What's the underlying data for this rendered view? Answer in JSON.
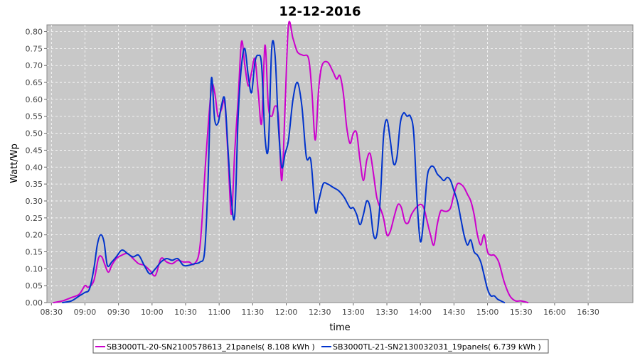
{
  "chart_data": {
    "type": "line",
    "title": "12-12-2016",
    "xlabel": "time",
    "ylabel": "Watt/Wp",
    "xlim": [
      "08:26",
      "17:10"
    ],
    "ylim": [
      0,
      0.82
    ],
    "x_ticks": [
      "08:30",
      "09:00",
      "09:30",
      "10:00",
      "10:30",
      "11:00",
      "11:30",
      "12:00",
      "12:30",
      "13:00",
      "13:30",
      "14:00",
      "14:30",
      "15:00",
      "15:30",
      "16:00",
      "16:30"
    ],
    "y_ticks": [
      0.0,
      0.05,
      0.1,
      0.15,
      0.2,
      0.25,
      0.3,
      0.35,
      0.4,
      0.45,
      0.5,
      0.55,
      0.6,
      0.65,
      0.7,
      0.75,
      0.8
    ],
    "grid": true,
    "legend_position": "bottom",
    "colors": {
      "plot_background": "#c8c8c8",
      "grid": "#ffffff",
      "series1": "#cc00cc",
      "series2": "#0033cc"
    },
    "series": [
      {
        "name": "SB3000TL-20-SN2100578613_21panels",
        "legend_label": "SB3000TL-20-SN2100578613_21panels( 8.108 kWh )",
        "color": "#cc00cc",
        "points": [
          [
            "08:32",
            0.0
          ],
          [
            "08:40",
            0.005
          ],
          [
            "08:48",
            0.015
          ],
          [
            "08:55",
            0.025
          ],
          [
            "09:00",
            0.05
          ],
          [
            "09:03",
            0.045
          ],
          [
            "09:08",
            0.065
          ],
          [
            "09:12",
            0.13
          ],
          [
            "09:15",
            0.135
          ],
          [
            "09:18",
            0.11
          ],
          [
            "09:21",
            0.09
          ],
          [
            "09:24",
            0.11
          ],
          [
            "09:28",
            0.13
          ],
          [
            "09:33",
            0.14
          ],
          [
            "09:38",
            0.145
          ],
          [
            "09:43",
            0.13
          ],
          [
            "09:48",
            0.115
          ],
          [
            "09:53",
            0.11
          ],
          [
            "09:58",
            0.095
          ],
          [
            "10:03",
            0.08
          ],
          [
            "10:08",
            0.13
          ],
          [
            "10:13",
            0.12
          ],
          [
            "10:18",
            0.115
          ],
          [
            "10:23",
            0.125
          ],
          [
            "10:28",
            0.12
          ],
          [
            "10:33",
            0.12
          ],
          [
            "10:38",
            0.115
          ],
          [
            "10:43",
            0.17
          ],
          [
            "10:48",
            0.42
          ],
          [
            "10:53",
            0.63
          ],
          [
            "10:56",
            0.62
          ],
          [
            "10:59",
            0.55
          ],
          [
            "11:02",
            0.57
          ],
          [
            "11:05",
            0.59
          ],
          [
            "11:08",
            0.43
          ],
          [
            "11:11",
            0.26
          ],
          [
            "11:14",
            0.45
          ],
          [
            "11:17",
            0.6
          ],
          [
            "11:20",
            0.77
          ],
          [
            "11:23",
            0.7
          ],
          [
            "11:26",
            0.64
          ],
          [
            "11:29",
            0.68
          ],
          [
            "11:32",
            0.72
          ],
          [
            "11:35",
            0.62
          ],
          [
            "11:38",
            0.53
          ],
          [
            "11:41",
            0.76
          ],
          [
            "11:44",
            0.58
          ],
          [
            "11:47",
            0.55
          ],
          [
            "11:50",
            0.58
          ],
          [
            "11:53",
            0.55
          ],
          [
            "11:56",
            0.36
          ],
          [
            "11:59",
            0.58
          ],
          [
            "12:02",
            0.82
          ],
          [
            "12:06",
            0.78
          ],
          [
            "12:10",
            0.74
          ],
          [
            "12:15",
            0.73
          ],
          [
            "12:20",
            0.72
          ],
          [
            "12:23",
            0.62
          ],
          [
            "12:26",
            0.48
          ],
          [
            "12:29",
            0.63
          ],
          [
            "12:32",
            0.7
          ],
          [
            "12:37",
            0.71
          ],
          [
            "12:42",
            0.68
          ],
          [
            "12:45",
            0.66
          ],
          [
            "12:48",
            0.67
          ],
          [
            "12:51",
            0.62
          ],
          [
            "12:54",
            0.52
          ],
          [
            "12:57",
            0.47
          ],
          [
            "13:00",
            0.5
          ],
          [
            "13:03",
            0.5
          ],
          [
            "13:06",
            0.42
          ],
          [
            "13:09",
            0.36
          ],
          [
            "13:12",
            0.42
          ],
          [
            "13:15",
            0.44
          ],
          [
            "13:18",
            0.38
          ],
          [
            "13:21",
            0.31
          ],
          [
            "13:24",
            0.28
          ],
          [
            "13:27",
            0.25
          ],
          [
            "13:30",
            0.2
          ],
          [
            "13:33",
            0.21
          ],
          [
            "13:37",
            0.26
          ],
          [
            "13:40",
            0.29
          ],
          [
            "13:43",
            0.28
          ],
          [
            "13:46",
            0.24
          ],
          [
            "13:49",
            0.235
          ],
          [
            "13:52",
            0.26
          ],
          [
            "13:56",
            0.28
          ],
          [
            "14:00",
            0.29
          ],
          [
            "14:03",
            0.28
          ],
          [
            "14:06",
            0.24
          ],
          [
            "14:09",
            0.2
          ],
          [
            "14:12",
            0.17
          ],
          [
            "14:15",
            0.23
          ],
          [
            "14:18",
            0.27
          ],
          [
            "14:21",
            0.27
          ],
          [
            "14:24",
            0.27
          ],
          [
            "14:27",
            0.28
          ],
          [
            "14:30",
            0.32
          ],
          [
            "14:33",
            0.35
          ],
          [
            "14:36",
            0.35
          ],
          [
            "14:39",
            0.34
          ],
          [
            "14:42",
            0.32
          ],
          [
            "14:45",
            0.3
          ],
          [
            "14:48",
            0.26
          ],
          [
            "14:51",
            0.2
          ],
          [
            "14:54",
            0.17
          ],
          [
            "14:57",
            0.2
          ],
          [
            "15:00",
            0.15
          ],
          [
            "15:03",
            0.14
          ],
          [
            "15:06",
            0.14
          ],
          [
            "15:10",
            0.12
          ],
          [
            "15:15",
            0.06
          ],
          [
            "15:20",
            0.02
          ],
          [
            "15:25",
            0.005
          ],
          [
            "15:30",
            0.005
          ],
          [
            "15:36",
            0.0
          ]
        ]
      },
      {
        "name": "SB3000TL-21-SN2130032031_19panels",
        "legend_label": "SB3000TL-21-SN2130032031_19panels( 6.739 kWh )",
        "color": "#0033cc",
        "points": [
          [
            "08:40",
            0.0
          ],
          [
            "08:48",
            0.005
          ],
          [
            "08:55",
            0.02
          ],
          [
            "09:00",
            0.03
          ],
          [
            "09:04",
            0.04
          ],
          [
            "09:08",
            0.1
          ],
          [
            "09:11",
            0.17
          ],
          [
            "09:14",
            0.2
          ],
          [
            "09:17",
            0.18
          ],
          [
            "09:20",
            0.11
          ],
          [
            "09:24",
            0.12
          ],
          [
            "09:28",
            0.135
          ],
          [
            "09:33",
            0.155
          ],
          [
            "09:38",
            0.145
          ],
          [
            "09:43",
            0.135
          ],
          [
            "09:48",
            0.14
          ],
          [
            "09:53",
            0.11
          ],
          [
            "09:58",
            0.085
          ],
          [
            "10:03",
            0.1
          ],
          [
            "10:08",
            0.12
          ],
          [
            "10:13",
            0.13
          ],
          [
            "10:18",
            0.125
          ],
          [
            "10:23",
            0.13
          ],
          [
            "10:28",
            0.11
          ],
          [
            "10:33",
            0.11
          ],
          [
            "10:38",
            0.115
          ],
          [
            "10:43",
            0.12
          ],
          [
            "10:47",
            0.15
          ],
          [
            "10:50",
            0.35
          ],
          [
            "10:53",
            0.66
          ],
          [
            "10:56",
            0.54
          ],
          [
            "10:59",
            0.53
          ],
          [
            "11:02",
            0.58
          ],
          [
            "11:05",
            0.6
          ],
          [
            "11:08",
            0.45
          ],
          [
            "11:11",
            0.3
          ],
          [
            "11:14",
            0.26
          ],
          [
            "11:17",
            0.55
          ],
          [
            "11:20",
            0.7
          ],
          [
            "11:23",
            0.75
          ],
          [
            "11:26",
            0.67
          ],
          [
            "11:29",
            0.62
          ],
          [
            "11:32",
            0.71
          ],
          [
            "11:35",
            0.73
          ],
          [
            "11:38",
            0.7
          ],
          [
            "11:41",
            0.49
          ],
          [
            "11:44",
            0.46
          ],
          [
            "11:47",
            0.75
          ],
          [
            "11:50",
            0.73
          ],
          [
            "11:53",
            0.52
          ],
          [
            "11:56",
            0.4
          ],
          [
            "11:59",
            0.44
          ],
          [
            "12:02",
            0.48
          ],
          [
            "12:06",
            0.6
          ],
          [
            "12:10",
            0.65
          ],
          [
            "12:14",
            0.58
          ],
          [
            "12:18",
            0.43
          ],
          [
            "12:22",
            0.42
          ],
          [
            "12:26",
            0.27
          ],
          [
            "12:29",
            0.3
          ],
          [
            "12:33",
            0.35
          ],
          [
            "12:37",
            0.35
          ],
          [
            "12:42",
            0.34
          ],
          [
            "12:47",
            0.33
          ],
          [
            "12:52",
            0.31
          ],
          [
            "12:57",
            0.28
          ],
          [
            "13:00",
            0.28
          ],
          [
            "13:03",
            0.26
          ],
          [
            "13:06",
            0.23
          ],
          [
            "13:09",
            0.26
          ],
          [
            "13:12",
            0.3
          ],
          [
            "13:15",
            0.28
          ],
          [
            "13:18",
            0.2
          ],
          [
            "13:21",
            0.2
          ],
          [
            "13:24",
            0.3
          ],
          [
            "13:27",
            0.49
          ],
          [
            "13:30",
            0.54
          ],
          [
            "13:33",
            0.48
          ],
          [
            "13:36",
            0.41
          ],
          [
            "13:39",
            0.43
          ],
          [
            "13:42",
            0.53
          ],
          [
            "13:45",
            0.56
          ],
          [
            "13:48",
            0.55
          ],
          [
            "13:51",
            0.55
          ],
          [
            "13:54",
            0.5
          ],
          [
            "13:57",
            0.3
          ],
          [
            "14:00",
            0.18
          ],
          [
            "14:03",
            0.25
          ],
          [
            "14:06",
            0.37
          ],
          [
            "14:09",
            0.4
          ],
          [
            "14:12",
            0.4
          ],
          [
            "14:15",
            0.38
          ],
          [
            "14:18",
            0.37
          ],
          [
            "14:21",
            0.36
          ],
          [
            "14:24",
            0.37
          ],
          [
            "14:27",
            0.36
          ],
          [
            "14:30",
            0.33
          ],
          [
            "14:33",
            0.3
          ],
          [
            "14:36",
            0.25
          ],
          [
            "14:39",
            0.2
          ],
          [
            "14:42",
            0.17
          ],
          [
            "14:45",
            0.185
          ],
          [
            "14:48",
            0.15
          ],
          [
            "14:51",
            0.14
          ],
          [
            "14:54",
            0.12
          ],
          [
            "14:57",
            0.08
          ],
          [
            "15:00",
            0.04
          ],
          [
            "15:03",
            0.02
          ],
          [
            "15:06",
            0.02
          ],
          [
            "15:09",
            0.01
          ],
          [
            "15:12",
            0.005
          ],
          [
            "15:15",
            0.0
          ]
        ]
      }
    ]
  }
}
